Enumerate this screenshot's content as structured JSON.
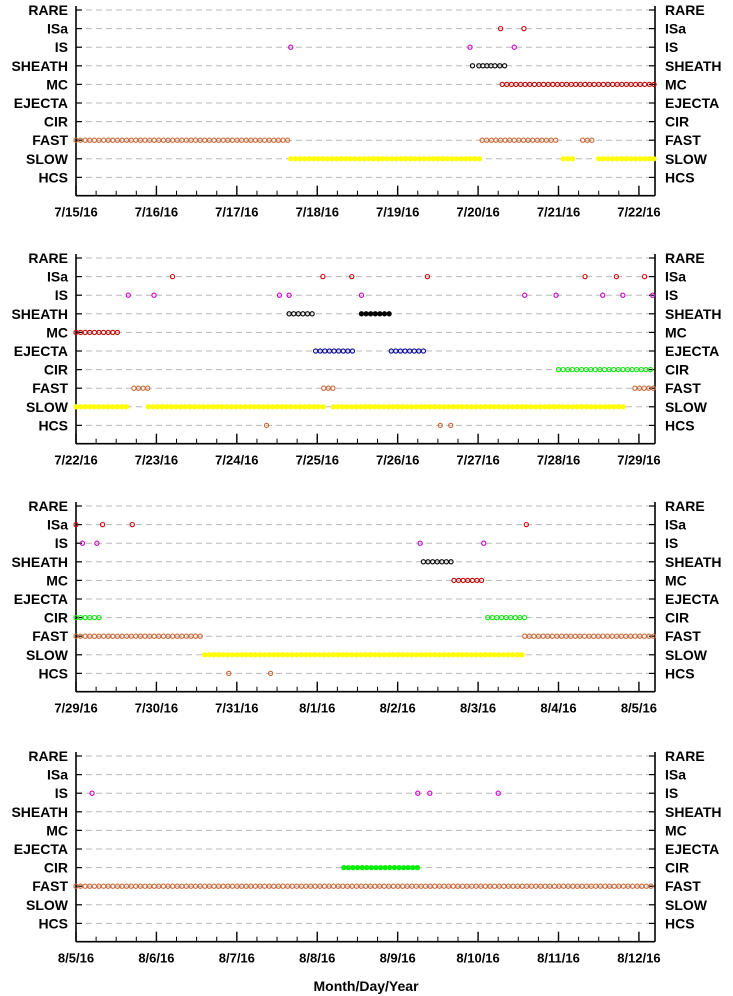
{
  "chart_data": {
    "type": "scatter",
    "categories": [
      "RARE",
      "ISa",
      "IS",
      "SHEATH",
      "MC",
      "EJECTA",
      "CIR",
      "FAST",
      "SLOW",
      "HCS"
    ],
    "colors": {
      "RARE": "#888888",
      "ISa": "#cc0000",
      "IS": "#cc00cc",
      "SHEATH": "#000000",
      "MC": "#cc0000",
      "EJECTA": "#000099",
      "CIR": "#00ee00",
      "FAST": "#cc6633",
      "SLOW": "#ffff00",
      "HCS": "#cc6633"
    },
    "xlabel": "Month/Day/Year",
    "panels": [
      {
        "x_ticks": [
          "7/15/16",
          "7/16/16",
          "7/17/16",
          "7/18/16",
          "7/19/16",
          "7/20/16",
          "7/21/16",
          "7/22/16"
        ],
        "xlim": [
          0,
          7.2
        ],
        "events": [
          {
            "cat": "ISa",
            "x": [
              5.28,
              5.57
            ]
          },
          {
            "cat": "IS",
            "x": [
              2.67,
              4.9,
              5.45
            ]
          },
          {
            "cat": "SHEATH",
            "x": [
              4.93,
              5.01,
              5.06,
              5.11,
              5.16,
              5.21,
              5.27,
              5.33
            ]
          },
          {
            "cat": "MC",
            "range": [
              5.3,
              7.2
            ]
          },
          {
            "cat": "FAST",
            "range": [
              0.0,
              2.65
            ]
          },
          {
            "cat": "FAST",
            "range": [
              5.05,
              5.97
            ]
          },
          {
            "cat": "FAST",
            "range": [
              6.3,
              6.45
            ]
          },
          {
            "cat": "SLOW",
            "range": [
              2.67,
              5.02
            ],
            "filled": true
          },
          {
            "cat": "SLOW",
            "range": [
              6.06,
              6.2
            ],
            "filled": true
          },
          {
            "cat": "SLOW",
            "range": [
              6.5,
              7.2
            ],
            "filled": true
          }
        ]
      },
      {
        "x_ticks": [
          "7/22/16",
          "7/23/16",
          "7/24/16",
          "7/25/16",
          "7/26/16",
          "7/27/16",
          "7/28/16",
          "7/29/16"
        ],
        "xlim": [
          0,
          7.2
        ],
        "events": [
          {
            "cat": "ISa",
            "x": [
              1.2,
              3.07,
              3.43,
              4.37,
              6.33,
              6.72,
              7.07
            ]
          },
          {
            "cat": "IS",
            "x": [
              0.65,
              0.97,
              2.53,
              2.65,
              3.55,
              5.58,
              5.97,
              6.55,
              6.8,
              7.17
            ]
          },
          {
            "cat": "SHEATH",
            "range": [
              2.65,
              2.98
            ]
          },
          {
            "cat": "SHEATH",
            "range": [
              3.55,
              3.92
            ],
            "filled": true
          },
          {
            "cat": "MC",
            "range": [
              0.0,
              0.53
            ]
          },
          {
            "cat": "EJECTA",
            "range": [
              2.98,
              3.45
            ]
          },
          {
            "cat": "EJECTA",
            "range": [
              3.92,
              4.35
            ]
          },
          {
            "cat": "CIR",
            "range": [
              6.0,
              7.2
            ]
          },
          {
            "cat": "FAST",
            "range": [
              0.72,
              0.9
            ]
          },
          {
            "cat": "FAST",
            "range": [
              3.08,
              3.2
            ]
          },
          {
            "cat": "FAST",
            "range": [
              6.95,
              7.2
            ]
          },
          {
            "cat": "SLOW",
            "range": [
              0.0,
              0.68
            ],
            "filled": true
          },
          {
            "cat": "SLOW",
            "range": [
              0.9,
              3.08
            ],
            "filled": true
          },
          {
            "cat": "SLOW",
            "range": [
              3.2,
              6.85
            ],
            "filled": true
          },
          {
            "cat": "HCS",
            "x": [
              2.37,
              4.53,
              4.66
            ]
          }
        ]
      },
      {
        "x_ticks": [
          "7/29/16",
          "7/30/16",
          "7/31/16",
          "8/1/16",
          "8/2/16",
          "8/3/16",
          "8/4/16",
          "8/5/16"
        ],
        "xlim": [
          0,
          7.2
        ],
        "events": [
          {
            "cat": "ISa",
            "x": [
              0.0,
              0.33,
              0.7,
              5.6
            ]
          },
          {
            "cat": "IS",
            "x": [
              0.08,
              0.26,
              4.28,
              5.07
            ]
          },
          {
            "cat": "SHEATH",
            "range": [
              4.32,
              4.7
            ]
          },
          {
            "cat": "MC",
            "range": [
              4.7,
              5.07
            ]
          },
          {
            "cat": "CIR",
            "range": [
              0.0,
              0.3
            ]
          },
          {
            "cat": "CIR",
            "range": [
              5.12,
              5.6
            ]
          },
          {
            "cat": "FAST",
            "range": [
              0.0,
              1.6
            ]
          },
          {
            "cat": "FAST",
            "range": [
              5.58,
              7.2
            ]
          },
          {
            "cat": "SLOW",
            "range": [
              1.6,
              5.55
            ],
            "filled": true
          },
          {
            "cat": "HCS",
            "x": [
              1.9,
              2.42
            ]
          }
        ]
      },
      {
        "x_ticks": [
          "8/5/16",
          "8/6/16",
          "8/7/16",
          "8/8/16",
          "8/9/16",
          "8/10/16",
          "8/11/16",
          "8/12/16"
        ],
        "xlim": [
          0,
          7.2
        ],
        "events": [
          {
            "cat": "IS",
            "x": [
              0.2,
              4.25,
              4.4,
              5.25
            ]
          },
          {
            "cat": "CIR",
            "range": [
              3.33,
              4.25
            ],
            "filled": true
          },
          {
            "cat": "FAST",
            "range": [
              0.0,
              7.2
            ]
          }
        ]
      }
    ]
  }
}
